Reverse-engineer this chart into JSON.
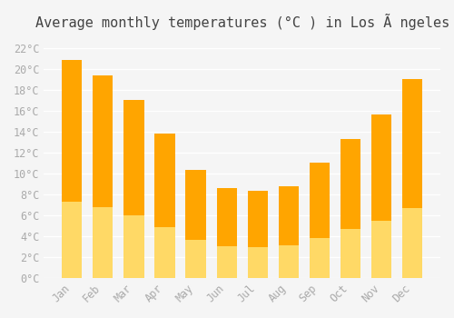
{
  "title": "Average monthly temperatures (°C ) in Los Ã ngeles",
  "months": [
    "Jan",
    "Feb",
    "Mar",
    "Apr",
    "May",
    "Jun",
    "Jul",
    "Aug",
    "Sep",
    "Oct",
    "Nov",
    "Dec"
  ],
  "values": [
    20.8,
    19.4,
    17.0,
    13.8,
    10.3,
    8.6,
    8.3,
    8.8,
    11.0,
    13.3,
    15.6,
    19.0
  ],
  "bar_color_top": "#FFA500",
  "bar_color_bottom": "#FFD966",
  "bar_edge_color": "none",
  "background_color": "#f5f5f5",
  "grid_color": "#ffffff",
  "ytick_labels": [
    "0°C",
    "2°C",
    "4°C",
    "6°C",
    "8°C",
    "10°C",
    "12°C",
    "14°C",
    "16°C",
    "18°C",
    "20°C",
    "22°C"
  ],
  "ytick_values": [
    0,
    2,
    4,
    6,
    8,
    10,
    12,
    14,
    16,
    18,
    20,
    22
  ],
  "ylim": [
    0,
    23
  ],
  "title_fontsize": 11,
  "tick_fontsize": 8.5,
  "tick_color": "#aaaaaa",
  "spine_color": "#cccccc"
}
